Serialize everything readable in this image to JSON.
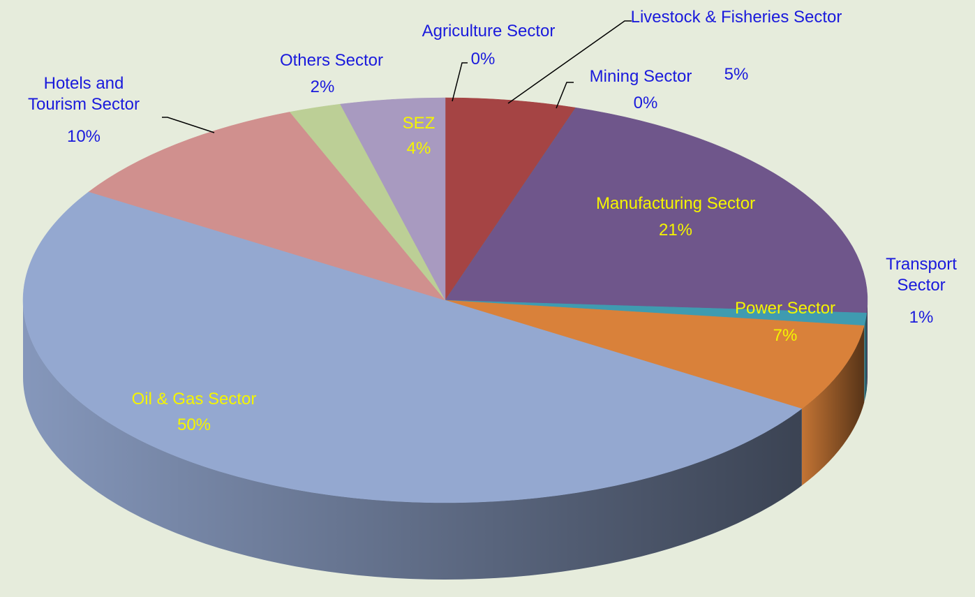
{
  "chart_data": {
    "type": "pie",
    "categories": [
      "Agriculture Sector",
      "Livestock & Fisheries Sector",
      "Mining Sector",
      "Manufacturing Sector",
      "Transport Sector",
      "Power Sector",
      "Oil & Gas Sector",
      "Hotels and Tourism Sector",
      "Others Sector",
      "SEZ"
    ],
    "values": [
      0,
      5,
      0,
      21,
      1,
      7,
      50,
      10,
      2,
      4
    ],
    "value_labels": [
      "0%",
      "5%",
      "0%",
      "21%",
      "1%",
      "7%",
      "50%",
      "10%",
      "2%",
      "4%"
    ],
    "colors": [
      "#3a6ab0",
      "#a54444",
      "#3f8fa0",
      "#6f568b",
      "#3f9bb0",
      "#d9813a",
      "#94a8d0",
      "#d0908e",
      "#bccf96",
      "#a89ac0"
    ],
    "label_colors": [
      "#1a1adc",
      "#1a1adc",
      "#1a1adc",
      "#f5f500",
      "#1a1adc",
      "#f5f500",
      "#f5f500",
      "#1a1adc",
      "#1a1adc",
      "#f5f500"
    ]
  }
}
